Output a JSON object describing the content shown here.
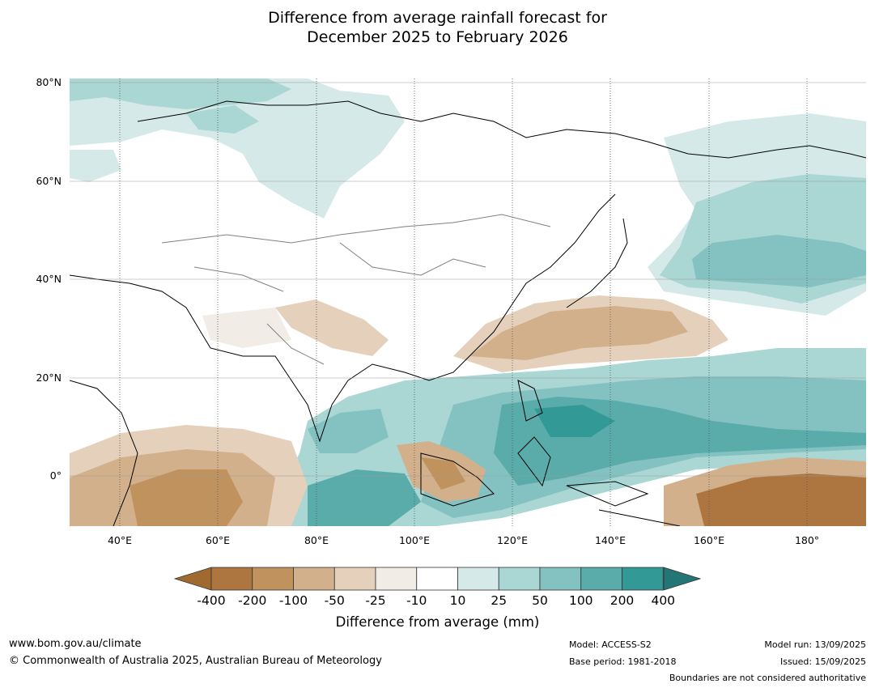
{
  "title_line1": "Difference from average rainfall forecast for",
  "title_line2": "December 2025 to February 2026",
  "lat_labels": [
    "80°N",
    "60°N",
    "40°N",
    "20°N",
    "0°"
  ],
  "lon_labels": [
    "40°E",
    "60°E",
    "80°E",
    "100°E",
    "120°E",
    "140°E",
    "160°E",
    "180°"
  ],
  "colorbar": {
    "labels": [
      "-400",
      "-200",
      "-100",
      "-50",
      "-25",
      "-10",
      "10",
      "25",
      "50",
      "100",
      "200",
      "400"
    ],
    "colors": [
      "#a0692f",
      "#ad7640",
      "#c0935e",
      "#d2b08b",
      "#e4d0bb",
      "#f2ece6",
      "#ffffff",
      "#d4e9e8",
      "#aad6d4",
      "#83c2c1",
      "#5aacab",
      "#339997",
      "#237675"
    ],
    "title": "Difference from average (mm)"
  },
  "footer": {
    "url": "www.bom.gov.au/climate",
    "copyright": "© Commonwealth of Australia 2025, Australian Bureau of Meteorology",
    "model": "Model: ACCESS-S2",
    "base_period": "Base period: 1981-2018",
    "model_run": "Model run: 13/09/2025",
    "issued": "Issued: 15/09/2025",
    "boundaries": "Boundaries are not considered authoritative"
  }
}
